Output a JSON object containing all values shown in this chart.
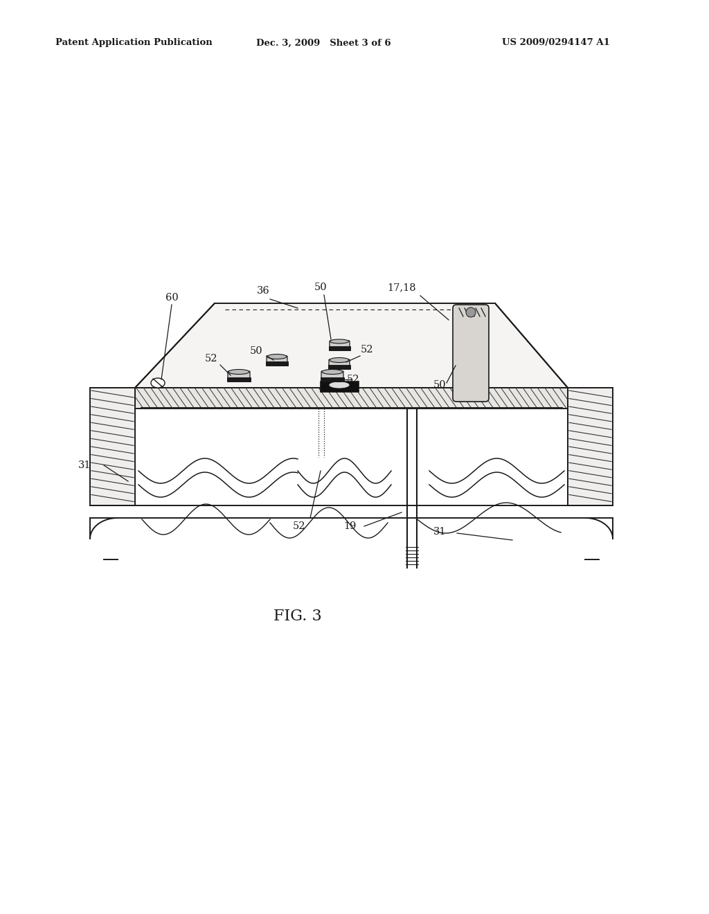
{
  "bg_color": "#ffffff",
  "header_left": "Patent Application Publication",
  "header_mid": "Dec. 3, 2009   Sheet 3 of 6",
  "header_right": "US 2009/0294147 A1",
  "fig_label": "FIG. 3",
  "line_color": "#1a1a1a",
  "hatch_color": "#333333",
  "fill_light": "#f8f7f5",
  "fill_mid": "#ededeb"
}
